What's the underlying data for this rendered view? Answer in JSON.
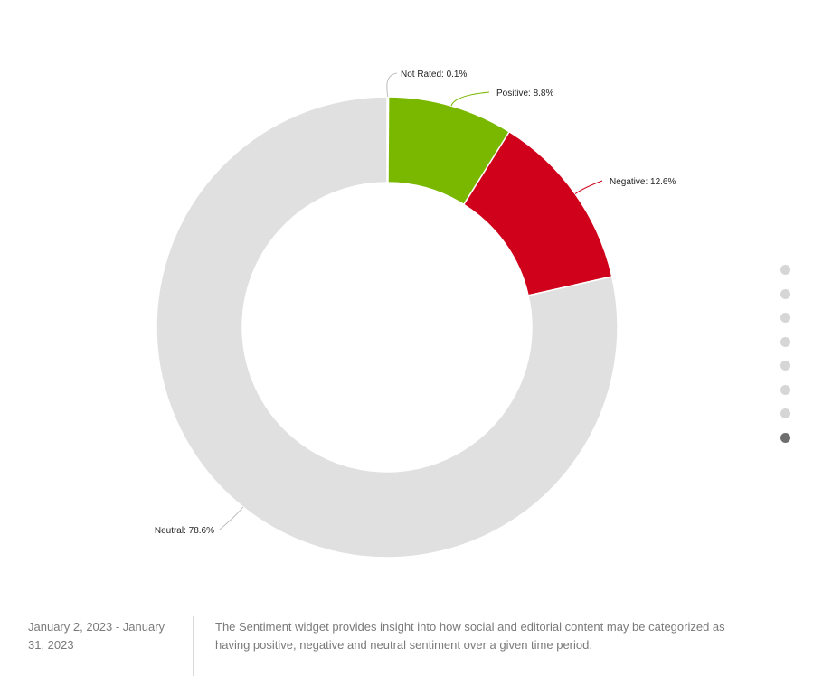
{
  "chart_data": {
    "type": "pie",
    "variant": "donut",
    "slices": [
      {
        "label": "Not Rated",
        "value": 0.1,
        "display": "Not Rated: 0.1%",
        "color": "#a0a0a0"
      },
      {
        "label": "Positive",
        "value": 8.8,
        "display": "Positive: 8.8%",
        "color": "#7ab800"
      },
      {
        "label": "Negative",
        "value": 12.6,
        "display": "Negative: 12.6%",
        "color": "#d0021b"
      },
      {
        "label": "Neutral",
        "value": 78.6,
        "display": "Neutral: 78.6%",
        "color": "#e0e0e0"
      }
    ],
    "unit": "%",
    "legend": "none"
  },
  "pager": {
    "dots": 8,
    "active_index": 7
  },
  "footer": {
    "date_range": "January 2, 2023 - January 31, 2023",
    "description": "The Sentiment widget provides insight into how social and editorial content may be categorized as having positive, negative and neutral sentiment over a given time period."
  }
}
